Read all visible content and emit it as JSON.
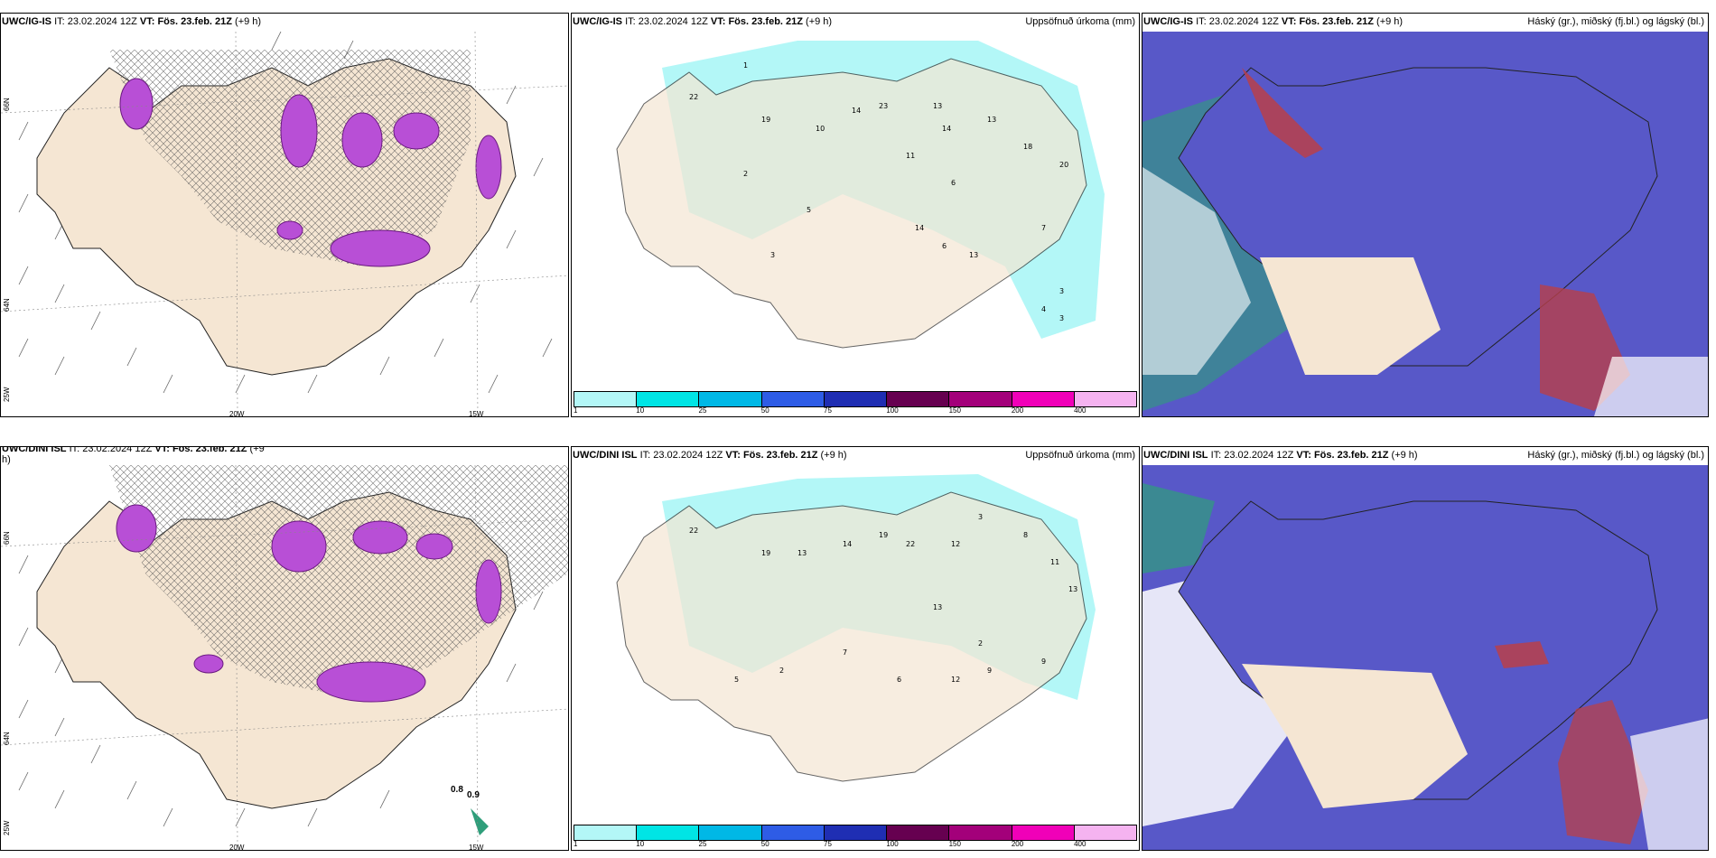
{
  "panels": {
    "p1": {
      "model": "UWC/IG-IS",
      "it_label": "IT:",
      "it_value": "23.02.2024 12Z",
      "vt_label": "VT:",
      "vt_value": "Fös. 23.feb. 21Z",
      "lead": "(+9 h)"
    },
    "p2": {
      "model": "UWC/IG-IS",
      "it_label": "IT:",
      "it_value": "23.02.2024 12Z",
      "vt_label": "VT:",
      "vt_value": "Fös. 23.feb. 21Z",
      "lead": "(+9 h)",
      "right": "Uppsöfnuð úrkoma (mm)"
    },
    "p3": {
      "model": "UWC/IG-IS",
      "it_label": "IT:",
      "it_value": "23.02.2024 12Z",
      "vt_label": "VT:",
      "vt_value": "Fös. 23.feb. 21Z",
      "lead": "(+9 h)",
      "right": "Háský (gr.), miðský (fj.bl.) og lágský (bl.)"
    },
    "p4": {
      "model": "UWC/DINI ISL",
      "it_label": "IT:",
      "it_value": "23.02.2024 12Z",
      "vt_label": "VT:",
      "vt_value": "Fös. 23.feb. 21Z",
      "lead": "(+9",
      "lead2": "h)"
    },
    "p5": {
      "model": "UWC/DINI ISL",
      "it_label": "IT:",
      "it_value": "23.02.2024 12Z",
      "vt_label": "VT:",
      "vt_value": "Fös. 23.feb. 21Z",
      "lead": "(+9 h)",
      "right": "Uppsöfnuð úrkoma (mm)"
    },
    "p6": {
      "model": "UWC/DINI ISL",
      "it_label": "IT:",
      "it_value": "23.02.2024 12Z",
      "vt_label": "VT:",
      "vt_value": "Fös. 23.feb. 21Z",
      "lead": "(+9 h)",
      "right": "Háský (gr.), miðský (fj.bl.) og lágský (bl.)"
    }
  },
  "axis_labels": {
    "lon_20": "20W",
    "lon_15": "15W",
    "lat_66": "66N",
    "lat_64": "64N",
    "lon_25": "25W"
  },
  "colorbar": {
    "labels": [
      "1",
      "10",
      "25",
      "50",
      "75",
      "100",
      "150",
      "200",
      "400"
    ],
    "colors": [
      "#b3f7f7",
      "#00e5e5",
      "#00b8e6",
      "#2e5ce6",
      "#1f2eb3",
      "#660050",
      "#a3007a",
      "#f000b8",
      "#f5b3f0"
    ]
  },
  "obs_values": {
    "a": "0.8",
    "b": "0.9"
  },
  "colors": {
    "land": "#f5e6d3",
    "sea_cyan": "#b3f7f7",
    "cloud_high": "#5858c8",
    "cloud_mid": "#2f9e7a",
    "cloud_red": "#b8404a",
    "precip_purple": "#b84fd6"
  }
}
